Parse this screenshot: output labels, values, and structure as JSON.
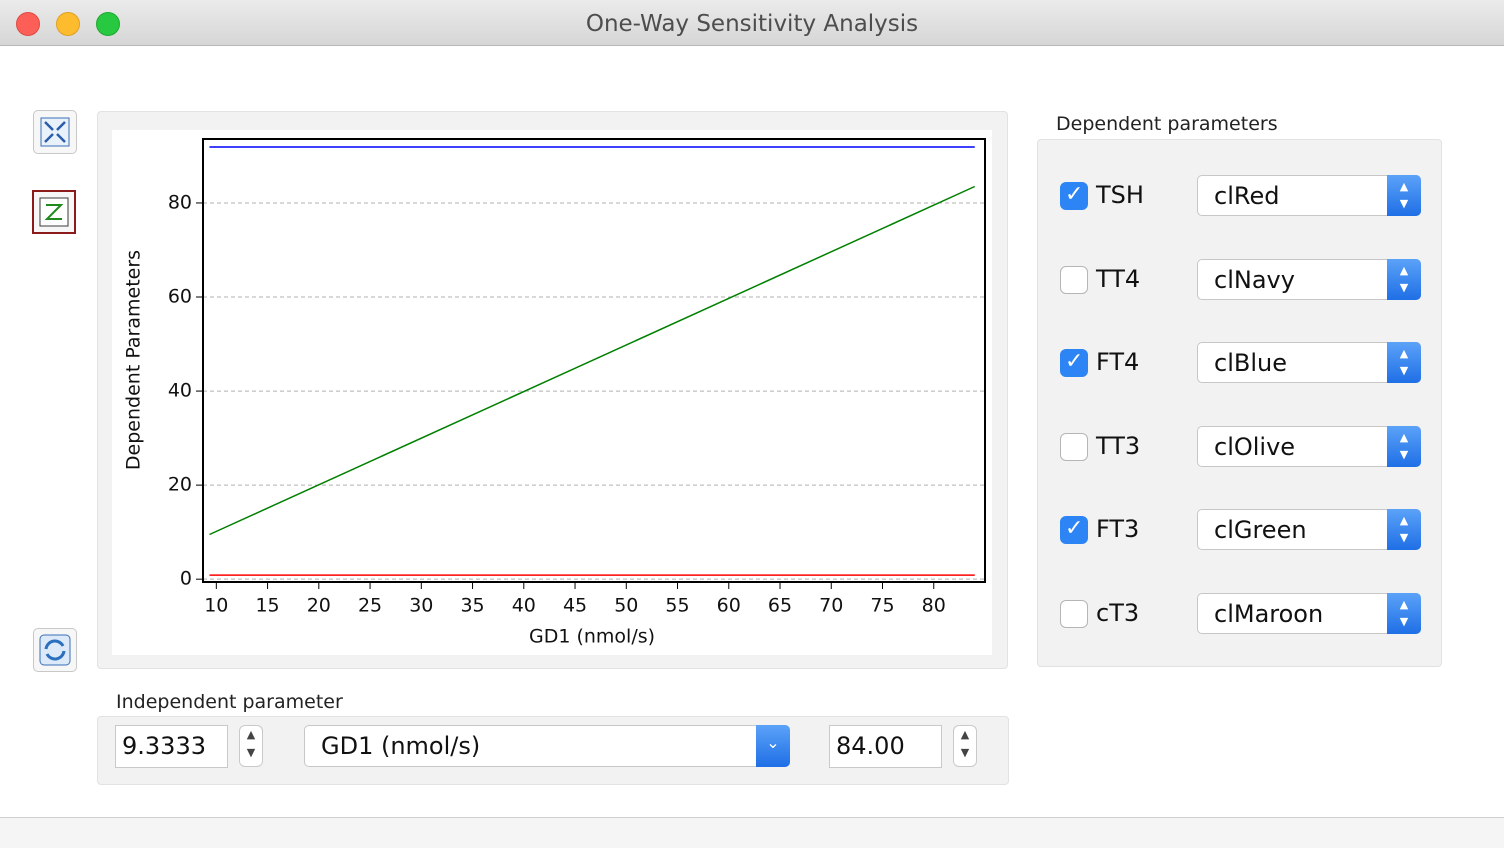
{
  "window": {
    "title": "One-Way Sensitivity Analysis"
  },
  "chart_data": {
    "type": "line",
    "xlabel": "GD1 (nmol/s)",
    "ylabel": "Dependent Parameters",
    "x": [
      9.3333,
      84
    ],
    "series": [
      {
        "color": "#ff0000",
        "values": [
          0.85,
          0.85
        ]
      },
      {
        "color": "#0000ff",
        "values": [
          91.9,
          91.9
        ]
      },
      {
        "color": "#008000",
        "values": [
          9.5,
          83.5
        ]
      }
    ],
    "xlim": [
      8.7,
      85
    ],
    "ylim": [
      -0.6,
      93.6
    ],
    "xticks": [
      10,
      15,
      20,
      25,
      30,
      35,
      40,
      45,
      50,
      55,
      60,
      65,
      70,
      75,
      80
    ],
    "yticks": [
      0,
      20,
      40,
      60,
      80
    ],
    "grid": true
  },
  "dependent": {
    "title": "Dependent parameters",
    "items": [
      {
        "name": "TSH",
        "checked": true,
        "color": "clRed"
      },
      {
        "name": "TT4",
        "checked": false,
        "color": "clNavy"
      },
      {
        "name": "FT4",
        "checked": true,
        "color": "clBlue"
      },
      {
        "name": "TT3",
        "checked": false,
        "color": "clOlive"
      },
      {
        "name": "FT3",
        "checked": true,
        "color": "clGreen"
      },
      {
        "name": "cT3",
        "checked": false,
        "color": "clMaroon"
      }
    ]
  },
  "independent": {
    "title": "Independent parameter",
    "min": "9.3333",
    "parameter": "GD1 (nmol/s)",
    "max": "84.00"
  }
}
